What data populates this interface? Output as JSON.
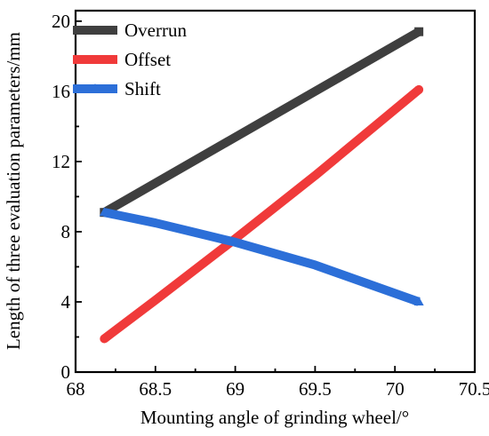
{
  "chart_data": {
    "type": "line",
    "xlabel": "Mounting angle of grinding wheel/°",
    "ylabel": "Length of three evaluation parameters/mm",
    "xlim": [
      68,
      70.5
    ],
    "ylim": [
      0,
      20.6
    ],
    "xticks": [
      68,
      68.5,
      69,
      69.5,
      70,
      70.5
    ],
    "xtick_labels": [
      "68",
      "68.5",
      "69",
      "69.5",
      "70",
      "70.5"
    ],
    "yticks": [
      0,
      4,
      8,
      12,
      16,
      20
    ],
    "ytick_labels": [
      "0",
      "4",
      "8",
      "12",
      "16",
      "20"
    ],
    "grid": false,
    "legend_position": "top-left",
    "series": [
      {
        "name": "Overrun",
        "color": "#3f3f3f",
        "marker": "square",
        "x": [
          68.18,
          70.15
        ],
        "y": [
          9.1,
          19.4
        ]
      },
      {
        "name": "Offset",
        "color": "#f03a3a",
        "marker": "circle",
        "x": [
          68.18,
          68.5,
          69.0,
          69.5,
          70.15
        ],
        "y": [
          1.9,
          4.1,
          7.6,
          11.2,
          16.1
        ]
      },
      {
        "name": "Shift",
        "color": "#2c6fd8",
        "marker": "triangle",
        "x": [
          68.18,
          68.5,
          69.0,
          69.5,
          70.15
        ],
        "y": [
          9.1,
          8.5,
          7.4,
          6.1,
          4.0
        ]
      }
    ]
  }
}
